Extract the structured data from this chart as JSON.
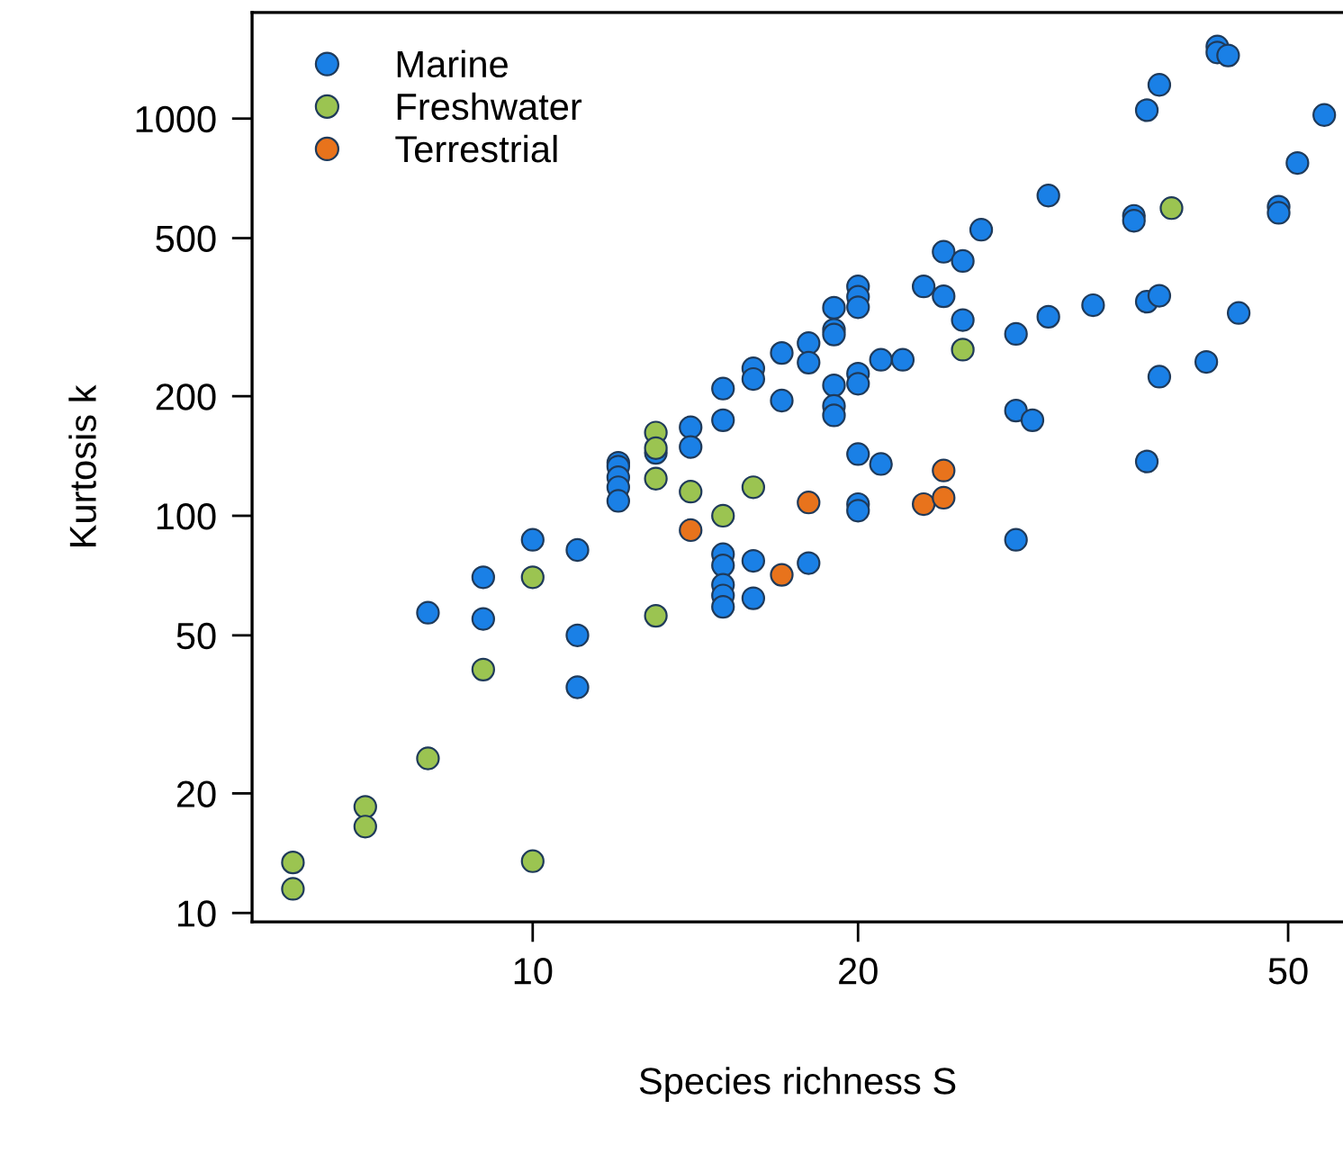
{
  "chart_data": {
    "type": "scatter",
    "xlabel": "Species richness S",
    "ylabel": "Kurtosis k",
    "log": "xy",
    "xlim": [
      5.5,
      56.2
    ],
    "ylim": [
      9.5,
      1850
    ],
    "xticks": [
      10,
      20,
      50
    ],
    "yticks": [
      10,
      20,
      50,
      100,
      200,
      500,
      1000
    ],
    "legend": "top left",
    "marker": "circle",
    "grid": false,
    "series": [
      {
        "name": "Marine",
        "color": "#1a80e6",
        "x": [
          8,
          9,
          9,
          10,
          11,
          11,
          11,
          12,
          12,
          12,
          12,
          12,
          15,
          15,
          15,
          15,
          15,
          16,
          16,
          13,
          14,
          14,
          15,
          15,
          16,
          16,
          17,
          17,
          18,
          18,
          19,
          19,
          19,
          19,
          19,
          19,
          20,
          20,
          20,
          20,
          20,
          20,
          21,
          22,
          21,
          23,
          24,
          24,
          25,
          25,
          26,
          28,
          28,
          29,
          30,
          30,
          33,
          36,
          36,
          37,
          38,
          37,
          38,
          38,
          37,
          42,
          43,
          43,
          44,
          45,
          49,
          49,
          51,
          54,
          20,
          20,
          18,
          28
        ],
        "values": [
          57,
          70,
          55,
          87,
          82,
          50,
          37,
          136,
          133,
          125,
          118,
          109,
          80,
          75,
          67,
          63,
          59,
          77,
          62,
          144,
          167,
          149,
          209,
          174,
          235,
          221,
          257,
          195,
          272,
          243,
          334,
          294,
          286,
          213,
          189,
          179,
          378,
          356,
          335,
          228,
          215,
          143,
          247,
          247,
          135,
          378,
          462,
          357,
          438,
          311,
          525,
          287,
          184,
          174,
          640,
          317,
          339,
          569,
          553,
          1050,
          1216,
          346,
          358,
          224,
          137,
          244,
          1518,
          1467,
          1442,
          324,
          600,
          579,
          773,
          1021,
          107,
          103,
          76,
          87
        ]
      },
      {
        "name": "Freshwater",
        "color": "#9bc451",
        "x": [
          6,
          6,
          7,
          7,
          8,
          9,
          10,
          10,
          13,
          14,
          15,
          16,
          13,
          13,
          13,
          25,
          39
        ],
        "values": [
          13.4,
          11.5,
          18.5,
          16.5,
          24.5,
          41,
          70,
          13.5,
          124,
          115,
          100,
          118,
          162,
          148,
          56,
          262,
          595
        ]
      },
      {
        "name": "Terrestrial",
        "color": "#e8731c",
        "x": [
          14,
          17,
          18,
          23,
          24,
          24
        ],
        "values": [
          92,
          71,
          108,
          107,
          111,
          130
        ]
      }
    ]
  }
}
